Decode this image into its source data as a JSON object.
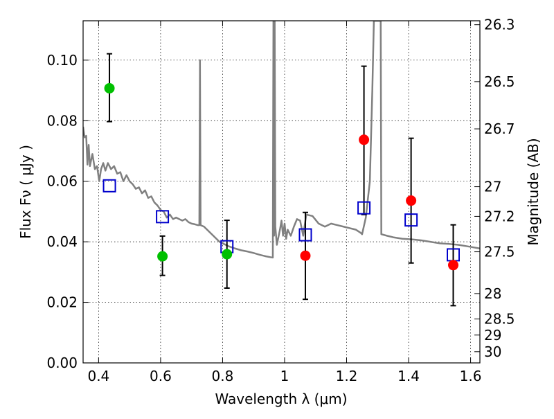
{
  "chart_data": {
    "type": "scatter",
    "xlabel": "Wavelength  λ (μm)",
    "ylabel": "Flux  Fν  ( μJy )",
    "ylabel_right": "Magnitude (AB)",
    "xlim": [
      0.35,
      1.63
    ],
    "ylim": [
      0.0,
      0.113
    ],
    "grid": true,
    "x_ticks": [
      {
        "value": 0.4,
        "label": "0.4"
      },
      {
        "value": 0.6,
        "label": "0.6"
      },
      {
        "value": 0.8,
        "label": "0.8"
      },
      {
        "value": 1.0,
        "label": "1"
      },
      {
        "value": 1.2,
        "label": "1.2"
      },
      {
        "value": 1.4,
        "label": "1.4"
      },
      {
        "value": 1.6,
        "label": "1.6"
      }
    ],
    "y_ticks": [
      {
        "value": 0.0,
        "label": "0.00"
      },
      {
        "value": 0.02,
        "label": "0.02"
      },
      {
        "value": 0.04,
        "label": "0.04"
      },
      {
        "value": 0.06,
        "label": "0.06"
      },
      {
        "value": 0.08,
        "label": "0.08"
      },
      {
        "value": 0.1,
        "label": "0.10"
      }
    ],
    "right_ticks": [
      {
        "flux": 0.1117,
        "label": "26.3"
      },
      {
        "flux": 0.0929,
        "label": "26.5"
      },
      {
        "flux": 0.0773,
        "label": "26.7"
      },
      {
        "flux": 0.0582,
        "label": "27"
      },
      {
        "flux": 0.0484,
        "label": "27.2"
      },
      {
        "flux": 0.0367,
        "label": "27.5"
      },
      {
        "flux": 0.0229,
        "label": "28"
      },
      {
        "flux": 0.0145,
        "label": "28.5"
      },
      {
        "flux": 0.0092,
        "label": "29"
      },
      {
        "flux": 0.0037,
        "label": "30"
      }
    ],
    "series": [
      {
        "marker": "green-circle",
        "color": "#00c000",
        "points": [
          {
            "x": 0.435,
            "y": 0.0907,
            "err_lo": 0.0797,
            "err_hi": 0.1021
          },
          {
            "x": 0.606,
            "y": 0.0352,
            "err_lo": 0.0289,
            "err_hi": 0.0419
          },
          {
            "x": 0.814,
            "y": 0.0359,
            "err_lo": 0.0247,
            "err_hi": 0.0471
          }
        ]
      },
      {
        "marker": "red-circle",
        "color": "#ff0000",
        "points": [
          {
            "x": 1.067,
            "y": 0.0354,
            "err_lo": 0.021,
            "err_hi": 0.0497
          },
          {
            "x": 1.256,
            "y": 0.0737,
            "err_lo": 0.049,
            "err_hi": 0.098
          },
          {
            "x": 1.408,
            "y": 0.0536,
            "err_lo": 0.033,
            "err_hi": 0.0742
          },
          {
            "x": 1.544,
            "y": 0.0323,
            "err_lo": 0.0189,
            "err_hi": 0.0456
          }
        ]
      },
      {
        "marker": "blue-square",
        "color": "#0000cc",
        "points": [
          {
            "x": 0.435,
            "y": 0.0585
          },
          {
            "x": 0.606,
            "y": 0.0483
          },
          {
            "x": 0.814,
            "y": 0.0384
          },
          {
            "x": 1.067,
            "y": 0.0423
          },
          {
            "x": 1.256,
            "y": 0.0512
          },
          {
            "x": 1.408,
            "y": 0.0472
          },
          {
            "x": 1.544,
            "y": 0.0357
          }
        ]
      },
      {
        "marker": "line",
        "color": "#808080",
        "points": [
          {
            "x": 0.35,
            "y": 0.078
          },
          {
            "x": 0.355,
            "y": 0.0745
          },
          {
            "x": 0.36,
            "y": 0.075
          },
          {
            "x": 0.364,
            "y": 0.0655
          },
          {
            "x": 0.368,
            "y": 0.072
          },
          {
            "x": 0.372,
            "y": 0.065
          },
          {
            "x": 0.38,
            "y": 0.069
          },
          {
            "x": 0.388,
            "y": 0.064
          },
          {
            "x": 0.395,
            "y": 0.065
          },
          {
            "x": 0.402,
            "y": 0.06
          },
          {
            "x": 0.408,
            "y": 0.064
          },
          {
            "x": 0.415,
            "y": 0.066
          },
          {
            "x": 0.422,
            "y": 0.0635
          },
          {
            "x": 0.43,
            "y": 0.066
          },
          {
            "x": 0.44,
            "y": 0.064
          },
          {
            "x": 0.45,
            "y": 0.065
          },
          {
            "x": 0.46,
            "y": 0.0625
          },
          {
            "x": 0.47,
            "y": 0.063
          },
          {
            "x": 0.48,
            "y": 0.06
          },
          {
            "x": 0.49,
            "y": 0.062
          },
          {
            "x": 0.5,
            "y": 0.06
          },
          {
            "x": 0.51,
            "y": 0.059
          },
          {
            "x": 0.52,
            "y": 0.0575
          },
          {
            "x": 0.53,
            "y": 0.058
          },
          {
            "x": 0.54,
            "y": 0.056
          },
          {
            "x": 0.55,
            "y": 0.057
          },
          {
            "x": 0.56,
            "y": 0.0545
          },
          {
            "x": 0.57,
            "y": 0.055
          },
          {
            "x": 0.58,
            "y": 0.053
          },
          {
            "x": 0.59,
            "y": 0.052
          },
          {
            "x": 0.6,
            "y": 0.0505
          },
          {
            "x": 0.61,
            "y": 0.05
          },
          {
            "x": 0.62,
            "y": 0.048
          },
          {
            "x": 0.63,
            "y": 0.049
          },
          {
            "x": 0.64,
            "y": 0.0475
          },
          {
            "x": 0.65,
            "y": 0.048
          },
          {
            "x": 0.66,
            "y": 0.0475
          },
          {
            "x": 0.67,
            "y": 0.047
          },
          {
            "x": 0.68,
            "y": 0.0475
          },
          {
            "x": 0.69,
            "y": 0.0465
          },
          {
            "x": 0.7,
            "y": 0.046
          },
          {
            "x": 0.71,
            "y": 0.0458
          },
          {
            "x": 0.72,
            "y": 0.0455
          },
          {
            "x": 0.725,
            "y": 0.0455
          },
          {
            "x": 0.727,
            "y": 0.1
          },
          {
            "x": 0.729,
            "y": 0.0455
          },
          {
            "x": 0.74,
            "y": 0.045
          },
          {
            "x": 0.75,
            "y": 0.044
          },
          {
            "x": 0.76,
            "y": 0.043
          },
          {
            "x": 0.77,
            "y": 0.042
          },
          {
            "x": 0.78,
            "y": 0.041
          },
          {
            "x": 0.79,
            "y": 0.04
          },
          {
            "x": 0.8,
            "y": 0.0395
          },
          {
            "x": 0.81,
            "y": 0.039
          },
          {
            "x": 0.82,
            "y": 0.0385
          },
          {
            "x": 0.84,
            "y": 0.0378
          },
          {
            "x": 0.86,
            "y": 0.0372
          },
          {
            "x": 0.88,
            "y": 0.0368
          },
          {
            "x": 0.9,
            "y": 0.0363
          },
          {
            "x": 0.92,
            "y": 0.0357
          },
          {
            "x": 0.94,
            "y": 0.0352
          },
          {
            "x": 0.955,
            "y": 0.0349
          },
          {
            "x": 0.962,
            "y": 0.0348
          },
          {
            "x": 0.964,
            "y": 0.113
          },
          {
            "x": 0.966,
            "y": 0.042
          },
          {
            "x": 0.968,
            "y": 0.113
          },
          {
            "x": 0.97,
            "y": 0.045
          },
          {
            "x": 0.975,
            "y": 0.039
          },
          {
            "x": 0.985,
            "y": 0.044
          },
          {
            "x": 0.99,
            "y": 0.047
          },
          {
            "x": 0.995,
            "y": 0.042
          },
          {
            "x": 1.0,
            "y": 0.046
          },
          {
            "x": 1.005,
            "y": 0.041
          },
          {
            "x": 1.01,
            "y": 0.044
          },
          {
            "x": 1.02,
            "y": 0.042
          },
          {
            "x": 1.03,
            "y": 0.045
          },
          {
            "x": 1.04,
            "y": 0.0475
          },
          {
            "x": 1.05,
            "y": 0.047
          },
          {
            "x": 1.06,
            "y": 0.042
          },
          {
            "x": 1.07,
            "y": 0.049
          },
          {
            "x": 1.09,
            "y": 0.0485
          },
          {
            "x": 1.11,
            "y": 0.046
          },
          {
            "x": 1.13,
            "y": 0.045
          },
          {
            "x": 1.15,
            "y": 0.046
          },
          {
            "x": 1.17,
            "y": 0.0455
          },
          {
            "x": 1.19,
            "y": 0.045
          },
          {
            "x": 1.21,
            "y": 0.0445
          },
          {
            "x": 1.23,
            "y": 0.044
          },
          {
            "x": 1.245,
            "y": 0.043
          },
          {
            "x": 1.25,
            "y": 0.0425
          },
          {
            "x": 1.262,
            "y": 0.048
          },
          {
            "x": 1.275,
            "y": 0.06
          },
          {
            "x": 1.283,
            "y": 0.09
          },
          {
            "x": 1.288,
            "y": 0.113
          },
          {
            "x": 1.3,
            "y": 0.113
          },
          {
            "x": 1.31,
            "y": 0.113
          },
          {
            "x": 1.312,
            "y": 0.0425
          },
          {
            "x": 1.33,
            "y": 0.042
          },
          {
            "x": 1.35,
            "y": 0.0415
          },
          {
            "x": 1.38,
            "y": 0.041
          },
          {
            "x": 1.41,
            "y": 0.0408
          },
          {
            "x": 1.44,
            "y": 0.0405
          },
          {
            "x": 1.47,
            "y": 0.04
          },
          {
            "x": 1.5,
            "y": 0.0395
          },
          {
            "x": 1.53,
            "y": 0.0393
          },
          {
            "x": 1.56,
            "y": 0.039
          },
          {
            "x": 1.59,
            "y": 0.0385
          },
          {
            "x": 1.63,
            "y": 0.0378
          }
        ]
      }
    ]
  }
}
